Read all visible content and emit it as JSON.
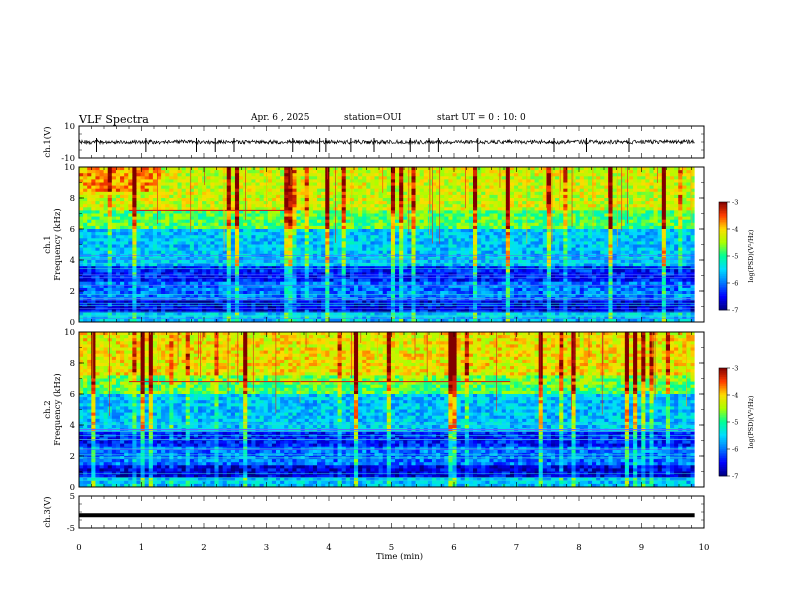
{
  "header": {
    "title": "VLF Spectra",
    "date": "Apr. 6 , 2025",
    "station": "station=OUI",
    "start": "start UT = 0 : 10: 0"
  },
  "chart_data": [
    {
      "type": "line",
      "panel": "ch1-waveform",
      "ylabel": "ch.1(V)",
      "ylim": [
        -10,
        10
      ],
      "yticks": [
        10,
        -10
      ],
      "baseline": 0,
      "spikes_min": [
        0.28,
        1.07,
        1.88,
        2.18,
        2.48,
        3.42,
        3.85,
        3.95,
        4.35,
        4.72,
        5.3,
        5.6,
        5.75,
        6.38,
        7.6,
        8.12,
        8.8
      ]
    },
    {
      "type": "heatmap",
      "panel": "ch1-spectrogram",
      "ylabel": "ch.1\nFrequency (kHz)",
      "ylim": [
        0,
        10
      ],
      "yticks": [
        0,
        2,
        4,
        6,
        8,
        10
      ],
      "colorbar": {
        "label": "log(PSD)(V²/Hz)",
        "range": [
          -7,
          -3
        ],
        "ticks": [
          -3,
          -4,
          -5,
          -6,
          -7
        ]
      }
    },
    {
      "type": "heatmap",
      "panel": "ch2-spectrogram",
      "ylabel": "ch.2\nFrequency (kHz)",
      "ylim": [
        0,
        10
      ],
      "yticks": [
        0,
        2,
        4,
        6,
        8,
        10
      ],
      "colorbar": {
        "label": "log(PSD)(V²/Hz)",
        "range": [
          -7,
          -3
        ],
        "ticks": [
          -3,
          -4,
          -5,
          -6,
          -7
        ]
      }
    },
    {
      "type": "line",
      "panel": "ch3-waveform",
      "ylabel": "ch.3(V)",
      "ylim": [
        -5,
        5
      ],
      "yticks": [
        5,
        -5
      ],
      "baseline": -1
    }
  ],
  "xaxis": {
    "label": "Time (min)",
    "range": [
      0,
      10
    ],
    "ticks": [
      0,
      1,
      2,
      3,
      4,
      5,
      6,
      7,
      8,
      9,
      10
    ],
    "data_end": 9.85
  },
  "colors": {
    "colormap": [
      "#000080",
      "#0000ff",
      "#00c8ff",
      "#00ffa0",
      "#a8ff00",
      "#ffd000",
      "#ff0000",
      "#800000"
    ]
  }
}
